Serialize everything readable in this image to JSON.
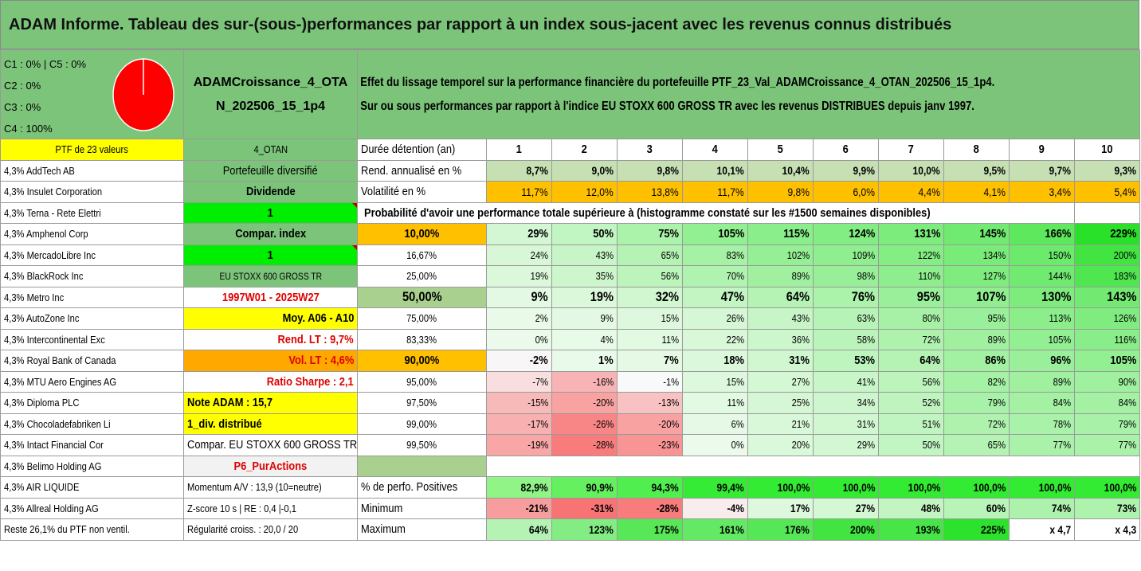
{
  "title": "ADAM Informe. Tableau des sur-(sous-)performances par rapport à un index sous-jacent avec les revenus connus distribués",
  "pie": {
    "labels": [
      "C1 : 0% | C5 : 0%",
      "C2 : 0%",
      "C3 : 0%",
      "C4 : 100%"
    ],
    "color": "#ff0000"
  },
  "portfolio_name": "ADAMCroissance_4_OTAN_202506_15_1p4",
  "description": {
    "line1": "Effet du lissage temporel sur la performance financière du portefeuille PTF_23_Val_ADAMCroissance_4_OTAN_202506_15_1p4.",
    "line2": "Sur ou sous performances par rapport à l'indice EU STOXX 600 GROSS TR avec les revenus DISTRIBUES depuis janv 1997."
  },
  "ptf_label": "PTF de 23 valeurs",
  "otan_label": "4_OTAN",
  "duration_label": "Durée détention (an)",
  "years": [
    "1",
    "2",
    "3",
    "4",
    "5",
    "6",
    "7",
    "8",
    "9",
    "10"
  ],
  "holdings": [
    "4,3% AddTech AB",
    "4,3% Insulet Corporation",
    "4,3% Terna - Rete Elettri",
    "4,3% Amphenol Corp",
    "4,3% MercadoLibre Inc",
    "4,3% BlackRock Inc",
    "4,3% Metro Inc",
    "4,3% AutoZone Inc",
    "4,3% Intercontinental Exc",
    "4,3% Royal Bank of Canada",
    "4,3% MTU Aero Engines AG",
    "4,3% Diploma PLC",
    "4,3% Chocoladefabriken Li",
    "4,3% Intact Financial Cor",
    "4,3% Belimo Holding AG",
    "4,3% AIR LIQUIDE",
    "4,3% Allreal Holding AG",
    "Reste 26,1% du PTF non ventil."
  ],
  "info": [
    "Portefeuille diversifié",
    "Dividende",
    "1",
    "Compar. index",
    "1",
    "EU STOXX 600 GROSS TR",
    "1997W01 - 2025W27",
    "Moy. A06 - A10",
    "Rend. LT : 9,7%",
    "Vol. LT : 4,6%",
    "Ratio Sharpe : 2,1",
    "Note ADAM : 15,7",
    "1_div. distribué",
    "Compar. EU STOXX 600 GROSS TR",
    "P6_PurActions",
    "Momentum A/V : 13,9 (10=neutre)",
    "Z-score 10 s | RE : 0,4 |-0,1",
    "Régularité croiss. : 20,0 / 20"
  ],
  "rend": {
    "label": "Rend. annualisé en %",
    "values": [
      "8,7%",
      "9,0%",
      "9,8%",
      "10,1%",
      "10,4%",
      "9,9%",
      "10,0%",
      "9,5%",
      "9,7%",
      "9,3%"
    ]
  },
  "vol": {
    "label": "Volatilité en %",
    "values": [
      "11,7%",
      "12,0%",
      "13,8%",
      "11,7%",
      "9,8%",
      "6,0%",
      "4,4%",
      "4,1%",
      "3,4%",
      "5,4%"
    ]
  },
  "prob_title": "Probabilité d'avoir une performance totale supérieure à (histogramme constaté sur les #1500 semaines disponibles)",
  "prob_rows": [
    {
      "p": "10,00%",
      "v": [
        "29%",
        "50%",
        "75%",
        "105%",
        "115%",
        "124%",
        "131%",
        "145%",
        "166%",
        "229%"
      ]
    },
    {
      "p": "16,67%",
      "v": [
        "24%",
        "43%",
        "65%",
        "83%",
        "102%",
        "109%",
        "122%",
        "134%",
        "150%",
        "200%"
      ]
    },
    {
      "p": "25,00%",
      "v": [
        "19%",
        "35%",
        "56%",
        "70%",
        "89%",
        "98%",
        "110%",
        "127%",
        "144%",
        "183%"
      ]
    },
    {
      "p": "50,00%",
      "v": [
        "9%",
        "19%",
        "32%",
        "47%",
        "64%",
        "76%",
        "95%",
        "107%",
        "130%",
        "143%"
      ]
    },
    {
      "p": "75,00%",
      "v": [
        "2%",
        "9%",
        "15%",
        "26%",
        "43%",
        "63%",
        "80%",
        "95%",
        "113%",
        "126%"
      ]
    },
    {
      "p": "83,33%",
      "v": [
        "0%",
        "4%",
        "11%",
        "22%",
        "36%",
        "58%",
        "72%",
        "89%",
        "105%",
        "116%"
      ]
    },
    {
      "p": "90,00%",
      "v": [
        "-2%",
        "1%",
        "7%",
        "18%",
        "31%",
        "53%",
        "64%",
        "86%",
        "96%",
        "105%"
      ]
    },
    {
      "p": "95,00%",
      "v": [
        "-7%",
        "-16%",
        "-1%",
        "15%",
        "27%",
        "41%",
        "56%",
        "82%",
        "89%",
        "90%"
      ]
    },
    {
      "p": "97,50%",
      "v": [
        "-15%",
        "-20%",
        "-13%",
        "11%",
        "25%",
        "34%",
        "52%",
        "79%",
        "84%",
        "84%"
      ]
    },
    {
      "p": "99,00%",
      "v": [
        "-17%",
        "-26%",
        "-20%",
        "6%",
        "21%",
        "31%",
        "51%",
        "72%",
        "78%",
        "79%"
      ]
    },
    {
      "p": "99,50%",
      "v": [
        "-19%",
        "-28%",
        "-23%",
        "0%",
        "20%",
        "29%",
        "50%",
        "65%",
        "77%",
        "77%"
      ]
    }
  ],
  "pos": {
    "label": "% de perfo. Positives",
    "values": [
      "82,9%",
      "90,9%",
      "94,3%",
      "99,4%",
      "100,0%",
      "100,0%",
      "100,0%",
      "100,0%",
      "100,0%",
      "100,0%"
    ]
  },
  "min": {
    "label": "Minimum",
    "values": [
      "-21%",
      "-31%",
      "-28%",
      "-4%",
      "17%",
      "27%",
      "48%",
      "60%",
      "74%",
      "73%"
    ]
  },
  "max": {
    "label": "Maximum",
    "values": [
      "64%",
      "123%",
      "175%",
      "161%",
      "176%",
      "200%",
      "193%",
      "225%",
      "x 4,7",
      "x 4,3"
    ]
  }
}
